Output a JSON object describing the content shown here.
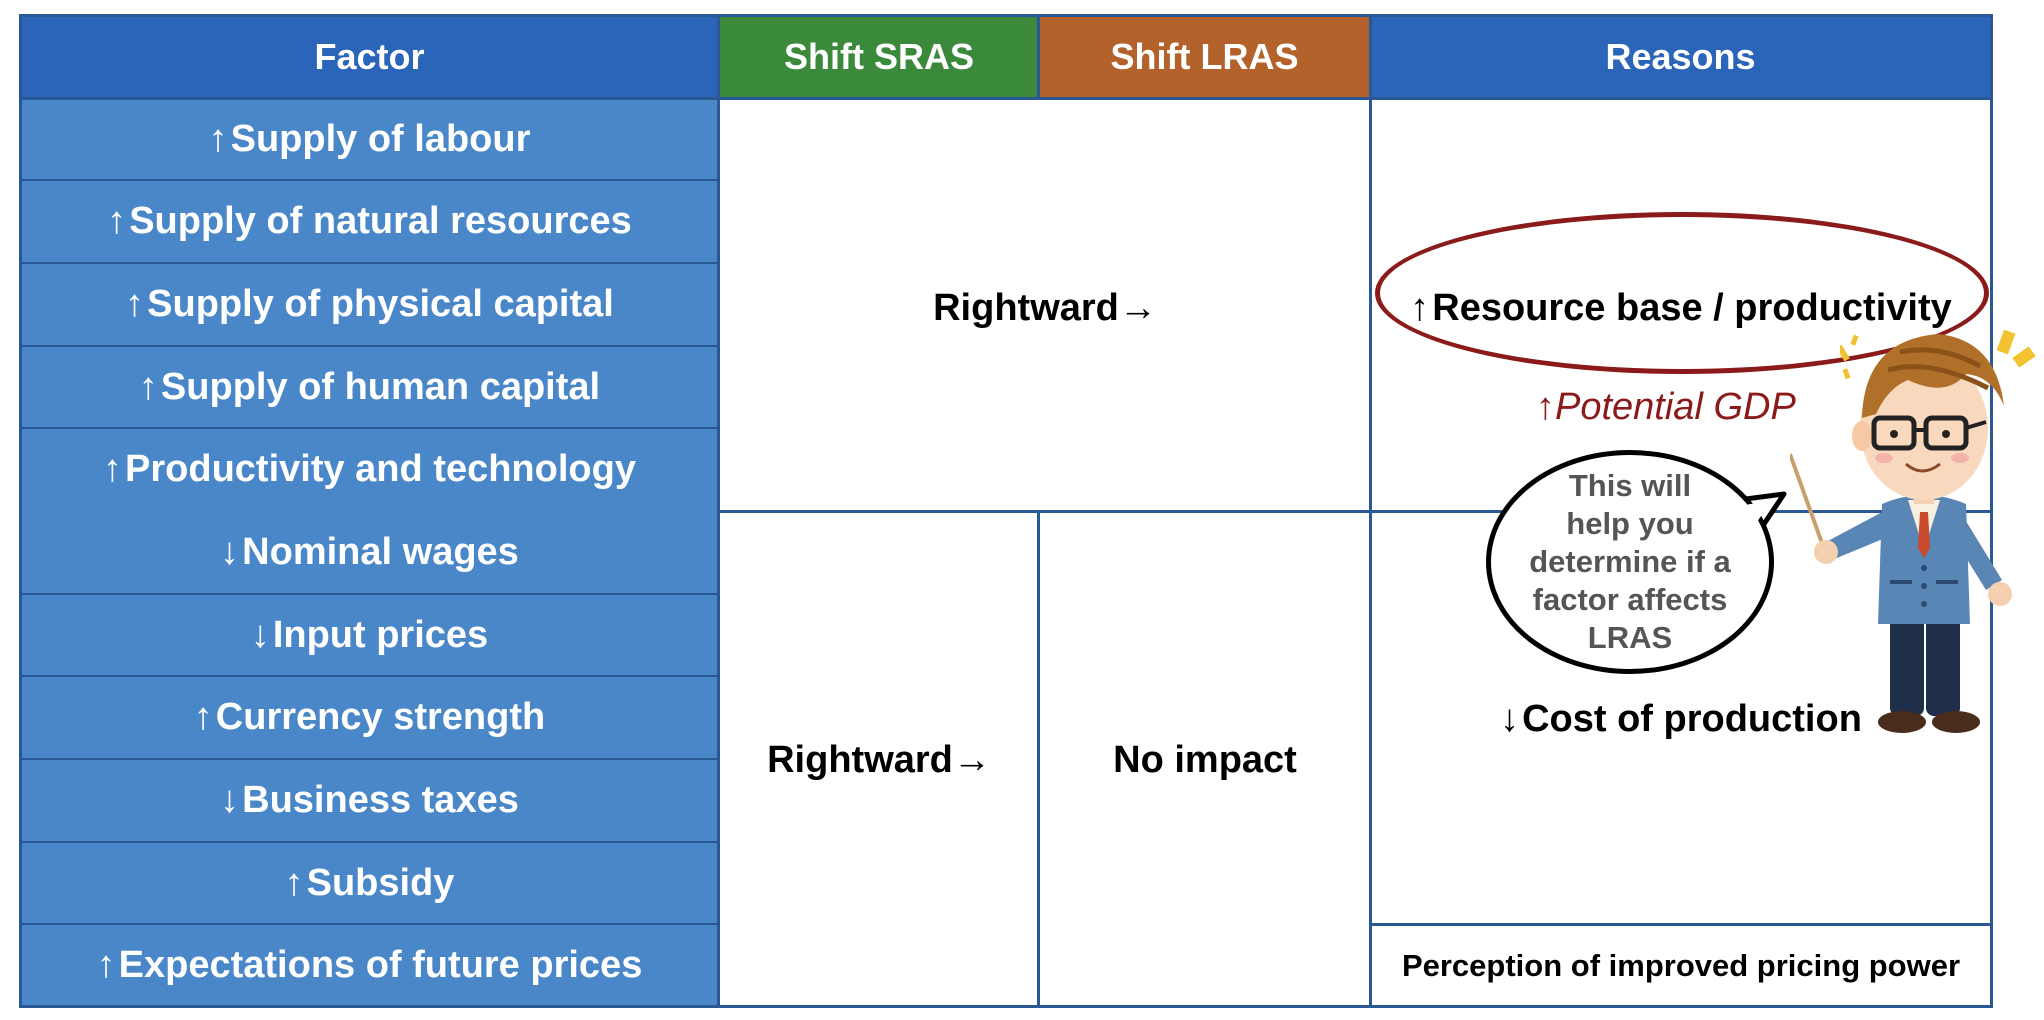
{
  "colors": {
    "header_blue": "#2b65b9",
    "header_green": "#3b8a3b",
    "header_orange": "#b4622b",
    "factor_blue": "#4a87c9",
    "grid_line": "#2a5894",
    "emphasis_red": "#8b1a1a"
  },
  "headers": {
    "factor": "Factor",
    "sras": "Shift SRAS",
    "lras": "Shift LRAS",
    "reasons": "Reasons"
  },
  "factors": [
    {
      "arrow": "↑",
      "label": "Supply of labour"
    },
    {
      "arrow": "↑",
      "label": "Supply of natural resources"
    },
    {
      "arrow": "↑",
      "label": "Supply of physical capital"
    },
    {
      "arrow": "↑",
      "label": "Supply of human capital"
    },
    {
      "arrow": "↑",
      "label": "Productivity and technology"
    },
    {
      "arrow": "↓",
      "label": "Nominal wages"
    },
    {
      "arrow": "↓",
      "label": "Input prices"
    },
    {
      "arrow": "↑",
      "label": "Currency strength"
    },
    {
      "arrow": "↓",
      "label": "Business taxes"
    },
    {
      "arrow": "↑",
      "label": "Subsidy"
    },
    {
      "arrow": "↑",
      "label": "Expectations of future prices"
    }
  ],
  "group1": {
    "shift_both": "Rightward→",
    "reason_arrow": "↑",
    "reason": "Resource base / productivity",
    "potential_arrow": "↑",
    "potential": "Potential GDP"
  },
  "group2": {
    "sras": "Rightward→",
    "lras": "No impact",
    "reason_arrow": "↓",
    "reason": "Cost of production"
  },
  "group3": {
    "reason": "Perception of improved pricing power"
  },
  "speech_bubble": {
    "line1": "This will",
    "line2": "help you",
    "line3": "determine if a",
    "line4": "factor affects",
    "line5": "LRAS"
  },
  "icons": {
    "teacher": "cartoon-teacher-with-pointer-icon",
    "sparkle": "sparkle-icon"
  }
}
